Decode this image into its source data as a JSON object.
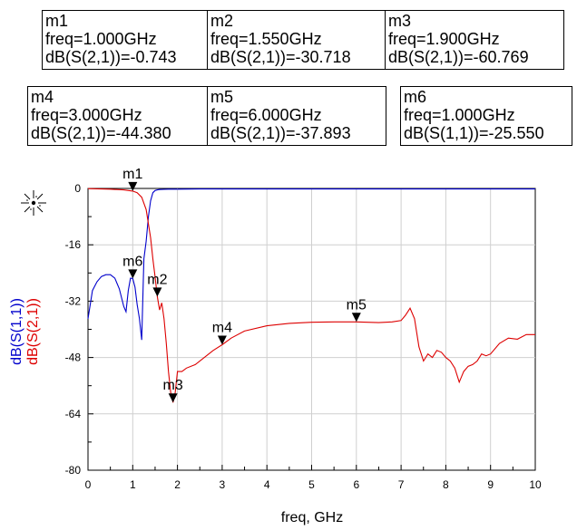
{
  "marker_boxes": [
    {
      "name": "m1",
      "freq": "freq=1.000GHz",
      "value": "dB(S(2,1))=-0.743"
    },
    {
      "name": "m2",
      "freq": "freq=1.550GHz",
      "value": "dB(S(2,1))=-30.718"
    },
    {
      "name": "m3",
      "freq": "freq=1.900GHz",
      "value": "dB(S(2,1))=-60.769"
    },
    {
      "name": "m4",
      "freq": "freq=3.000GHz",
      "value": "dB(S(2,1))=-44.380"
    },
    {
      "name": "m5",
      "freq": "freq=6.000GHz",
      "value": "dB(S(2,1))=-37.893"
    },
    {
      "name": "m6",
      "freq": "freq=1.000GHz",
      "value": "dB(S(1,1))=-25.550"
    }
  ],
  "chart_data": {
    "type": "line",
    "xlabel": "freq, GHz",
    "ylabel_series": [
      "dB(S(1,1))",
      "dB(S(2,1))"
    ],
    "xlim": [
      0,
      10
    ],
    "ylim": [
      -80,
      0
    ],
    "x_ticks": [
      0,
      1,
      2,
      3,
      4,
      5,
      6,
      7,
      8,
      9,
      10
    ],
    "y_ticks": [
      0,
      -16,
      -32,
      -48,
      -64,
      -80
    ],
    "grid": true,
    "series": [
      {
        "name": "dB(S(1,1))",
        "color": "#0000cc",
        "x": [
          0,
          0.1,
          0.2,
          0.3,
          0.4,
          0.5,
          0.6,
          0.7,
          0.8,
          0.85,
          0.9,
          0.95,
          1.0,
          1.05,
          1.1,
          1.15,
          1.2,
          1.25,
          1.3,
          1.35,
          1.4,
          1.45,
          1.5,
          1.55,
          1.6,
          1.7,
          1.8,
          2.0,
          2.5,
          3,
          4,
          5,
          6,
          7,
          8,
          9,
          10
        ],
        "y": [
          -37,
          -29,
          -26.5,
          -25,
          -24.5,
          -24.5,
          -25.5,
          -28.5,
          -33.5,
          -35,
          -29,
          -25.5,
          -25.55,
          -28,
          -33,
          -37,
          -43,
          -20,
          -15,
          -8,
          -3.5,
          -1.2,
          -0.6,
          -0.4,
          -0.3,
          -0.25,
          -0.2,
          -0.2,
          -0.15,
          -0.15,
          -0.15,
          -0.15,
          -0.15,
          -0.15,
          -0.15,
          -0.15,
          -0.15
        ]
      },
      {
        "name": "dB(S(2,1))",
        "color": "#dd0000",
        "x": [
          0,
          0.5,
          0.8,
          1.0,
          1.1,
          1.2,
          1.3,
          1.4,
          1.45,
          1.5,
          1.55,
          1.6,
          1.65,
          1.7,
          1.75,
          1.8,
          1.85,
          1.9,
          1.95,
          2.0,
          2.1,
          2.2,
          2.4,
          2.6,
          2.8,
          3.0,
          3.2,
          3.5,
          4.0,
          4.5,
          5.0,
          5.5,
          6.0,
          6.5,
          6.8,
          7.0,
          7.1,
          7.2,
          7.3,
          7.4,
          7.5,
          7.6,
          7.7,
          7.8,
          7.9,
          8.0,
          8.1,
          8.2,
          8.3,
          8.4,
          8.5,
          8.6,
          8.7,
          8.8,
          8.9,
          9.0,
          9.2,
          9.4,
          9.6,
          9.8,
          10.0
        ],
        "y": [
          -0.05,
          -0.2,
          -0.4,
          -0.743,
          -1.2,
          -2.5,
          -6,
          -14,
          -20,
          -25,
          -30.718,
          -34.5,
          -32.5,
          -37,
          -44,
          -52,
          -58,
          -60.769,
          -58,
          -52,
          -52,
          -51,
          -50,
          -48,
          -46,
          -44.38,
          -42.5,
          -40.5,
          -39,
          -38.3,
          -38,
          -37.9,
          -37.893,
          -38.1,
          -37.9,
          -37.5,
          -36,
          -34,
          -37,
          -45,
          -49,
          -47,
          -48,
          -46,
          -46.5,
          -48,
          -49,
          -51,
          -55,
          -52,
          -50.5,
          -50,
          -49,
          -47,
          -47.5,
          -47,
          -44,
          -42.5,
          -42.8,
          -41.5,
          -41.5
        ]
      }
    ],
    "markers": [
      {
        "label": "m1",
        "series": "dB(S(2,1))",
        "x": 1.0,
        "y": -0.743
      },
      {
        "label": "m2",
        "series": "dB(S(2,1))",
        "x": 1.55,
        "y": -30.718
      },
      {
        "label": "m3",
        "series": "dB(S(2,1))",
        "x": 1.9,
        "y": -60.769
      },
      {
        "label": "m4",
        "series": "dB(S(2,1))",
        "x": 3.0,
        "y": -44.38
      },
      {
        "label": "m5",
        "series": "dB(S(2,1))",
        "x": 6.0,
        "y": -37.893
      },
      {
        "label": "m6",
        "series": "dB(S(1,1))",
        "x": 1.0,
        "y": -25.55
      }
    ]
  }
}
